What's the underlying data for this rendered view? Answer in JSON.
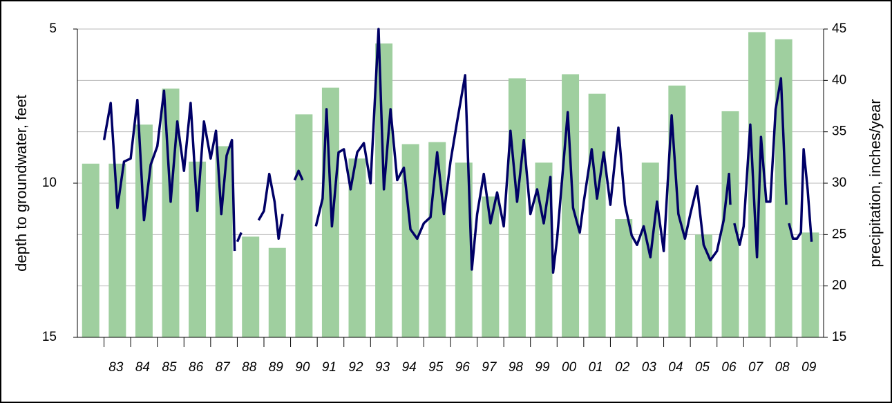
{
  "chart_data": {
    "type": "combo",
    "ylabel": "depth to groundwater, feet",
    "y2label": "precipitation, inches/year",
    "categories": [
      null,
      "83",
      "84",
      "85",
      "86",
      "87",
      "88",
      "89",
      "90",
      "91",
      "92",
      "93",
      "94",
      "95",
      "96",
      "97",
      "98",
      "99",
      "00",
      "01",
      "02",
      "03",
      "04",
      "05",
      "06",
      "07",
      "08",
      "09"
    ],
    "ylim": [
      5,
      15
    ],
    "yticks": [
      5,
      10,
      15
    ],
    "y_inverted": true,
    "y2lim": [
      15,
      45
    ],
    "y2ticks": [
      15,
      20,
      25,
      30,
      35,
      40,
      45
    ],
    "xlim": [
      1982,
      2010
    ],
    "grid": true,
    "series": [
      {
        "type": "bar",
        "axis": "y2",
        "color": "#9fcf9f",
        "values": [
          31.9,
          31.9,
          35.7,
          39.2,
          32.1,
          33.6,
          24.8,
          23.7,
          36.7,
          39.3,
          32.4,
          43.6,
          33.8,
          34.0,
          32.0,
          28.7,
          40.2,
          32.0,
          40.6,
          38.7,
          26.5,
          32.0,
          39.5,
          25.0,
          37.0,
          44.7,
          44.0,
          25.2
        ]
      },
      {
        "type": "line",
        "color": "#000066",
        "x": [
          1983.0,
          1983.25,
          1983.5,
          1983.75,
          1984.0,
          1984.25,
          1984.5,
          1984.75,
          1985.0,
          1985.25,
          1985.5,
          1985.75,
          1986.0,
          1986.25,
          1986.5,
          1986.75,
          1987.0,
          1987.2,
          1987.4,
          1987.6,
          1987.8,
          1987.9,
          1987.95,
          1988.0,
          1988.15,
          1988.4,
          1988.8,
          1989.0,
          1989.2,
          1989.4,
          1989.55,
          1989.7,
          1989.85,
          1990.15,
          1990.3,
          1990.45,
          1990.6,
          1990.95,
          1991.2,
          1991.35,
          1991.55,
          1991.8,
          1992.0,
          1992.25,
          1992.5,
          1992.75,
          1993.0,
          1993.3,
          1993.5,
          1993.75,
          1994.0,
          1994.25,
          1994.5,
          1994.75,
          1995.0,
          1995.25,
          1995.5,
          1995.75,
          1996.0,
          1996.25,
          1996.55,
          1996.8,
          1997.0,
          1997.25,
          1997.5,
          1997.75,
          1998.0,
          1998.25,
          1998.5,
          1998.75,
          1999.0,
          1999.25,
          1999.5,
          1999.75,
          1999.85,
          2000.0,
          2000.4,
          2000.6,
          2000.85,
          2001.0,
          2001.3,
          2001.5,
          2001.75,
          2002.0,
          2002.3,
          2002.55,
          2002.8,
          2003.0,
          2003.25,
          2003.5,
          2003.75,
          2004.0,
          2004.3,
          2004.55,
          2004.8,
          2005.0,
          2005.25,
          2005.5,
          2005.75,
          2006.0,
          2006.25,
          2006.45,
          2006.5,
          2006.55,
          2006.65,
          2006.85,
          2007.0,
          2007.25,
          2007.5,
          2007.65,
          2007.85,
          2008.0,
          2008.2,
          2008.4,
          2008.6,
          2008.65,
          2008.7,
          2008.85,
          2009.0,
          2009.15,
          2009.25,
          2009.4,
          2009.55
        ],
        "values": [
          8.6,
          7.4,
          10.8,
          9.3,
          9.2,
          7.3,
          11.2,
          9.4,
          8.8,
          7.0,
          10.6,
          8.0,
          9.6,
          7.4,
          10.9,
          8.0,
          9.2,
          8.3,
          11.0,
          9.1,
          8.6,
          12.2,
          null,
          11.9,
          11.6,
          null,
          11.2,
          10.9,
          9.7,
          10.6,
          11.8,
          11.0,
          null,
          9.9,
          9.6,
          9.9,
          null,
          11.4,
          10.5,
          7.6,
          11.4,
          9.0,
          8.9,
          10.2,
          9.0,
          8.7,
          10.0,
          5.0,
          10.2,
          7.6,
          9.9,
          9.5,
          11.5,
          11.8,
          11.3,
          11.1,
          9.0,
          11.0,
          9.3,
          8.0,
          6.5,
          12.8,
          11.0,
          9.7,
          11.3,
          10.3,
          11.4,
          8.3,
          10.6,
          8.6,
          11.0,
          10.2,
          11.3,
          9.8,
          12.9,
          11.8,
          7.7,
          10.8,
          11.6,
          10.6,
          8.9,
          10.5,
          9.0,
          10.7,
          8.2,
          10.7,
          11.7,
          12.0,
          11.4,
          12.4,
          10.6,
          12.2,
          7.8,
          11.0,
          11.8,
          11.0,
          10.1,
          12.0,
          12.5,
          12.2,
          11.2,
          9.7,
          10.7,
          null,
          11.3,
          12.0,
          11.4,
          8.1,
          12.4,
          8.5,
          10.6,
          10.6,
          7.6,
          6.6,
          10.7,
          null,
          11.3,
          11.8,
          11.8,
          11.6,
          8.9,
          10.2,
          11.9
        ]
      }
    ]
  }
}
